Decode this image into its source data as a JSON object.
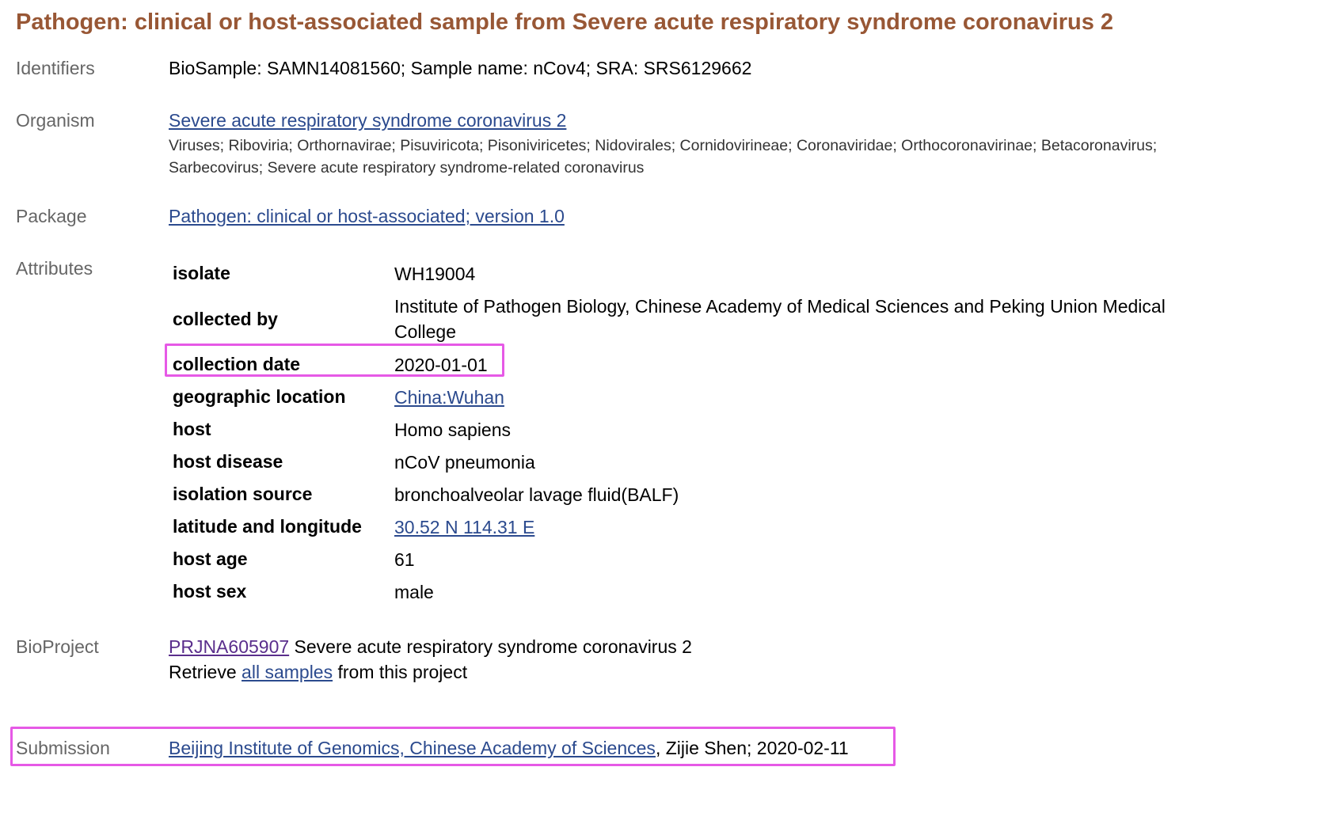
{
  "title": "Pathogen: clinical or host-associated sample from Severe acute respiratory syndrome coronavirus 2",
  "identifiers": {
    "label": "Identifiers",
    "value": "BioSample: SAMN14081560; Sample name: nCov4; SRA: SRS6129662"
  },
  "organism": {
    "label": "Organism",
    "link": "Severe acute respiratory syndrome coronavirus 2",
    "lineage": "Viruses; Riboviria; Orthornavirae; Pisuviricota; Pisoniviricetes; Nidovirales; Cornidovirineae; Coronaviridae; Orthocoronavirinae; Betacoronavirus; Sarbecovirus; Severe acute respiratory syndrome-related coronavirus"
  },
  "package": {
    "label": "Package",
    "link": "Pathogen: clinical or host-associated; version 1.0"
  },
  "attributes": {
    "label": "Attributes",
    "rows": [
      {
        "key": "isolate",
        "value": "WH19004"
      },
      {
        "key": "collected by",
        "value": "Institute of Pathogen Biology, Chinese Academy of Medical Sciences and Peking Union Medical College"
      },
      {
        "key": "collection date",
        "value": "2020-01-01"
      },
      {
        "key": "geographic location",
        "value": "China:Wuhan"
      },
      {
        "key": "host",
        "value": "Homo sapiens"
      },
      {
        "key": "host disease",
        "value": "nCoV pneumonia"
      },
      {
        "key": "isolation source",
        "value": "bronchoalveolar lavage fluid(BALF)"
      },
      {
        "key": "latitude and longitude",
        "value": "30.52 N 114.31 E"
      },
      {
        "key": "host age",
        "value": "61"
      },
      {
        "key": "host sex",
        "value": "male"
      }
    ]
  },
  "bioproject": {
    "label": "BioProject",
    "accession": "PRJNA605907",
    "description": " Severe acute respiratory syndrome coronavirus 2",
    "retrieve_prefix": "Retrieve ",
    "retrieve_link": "all samples",
    "retrieve_suffix": " from this project"
  },
  "submission": {
    "label": "Submission",
    "link": "Beijing Institute of Genomics, Chinese Academy of Sciences",
    "rest": ", Zijie Shen; 2020-02-11"
  },
  "colors": {
    "title": "#985735",
    "label": "#666666",
    "link": "#2b4a8e",
    "visited_link": "#5a2e8c",
    "highlight": "#e659e6"
  }
}
